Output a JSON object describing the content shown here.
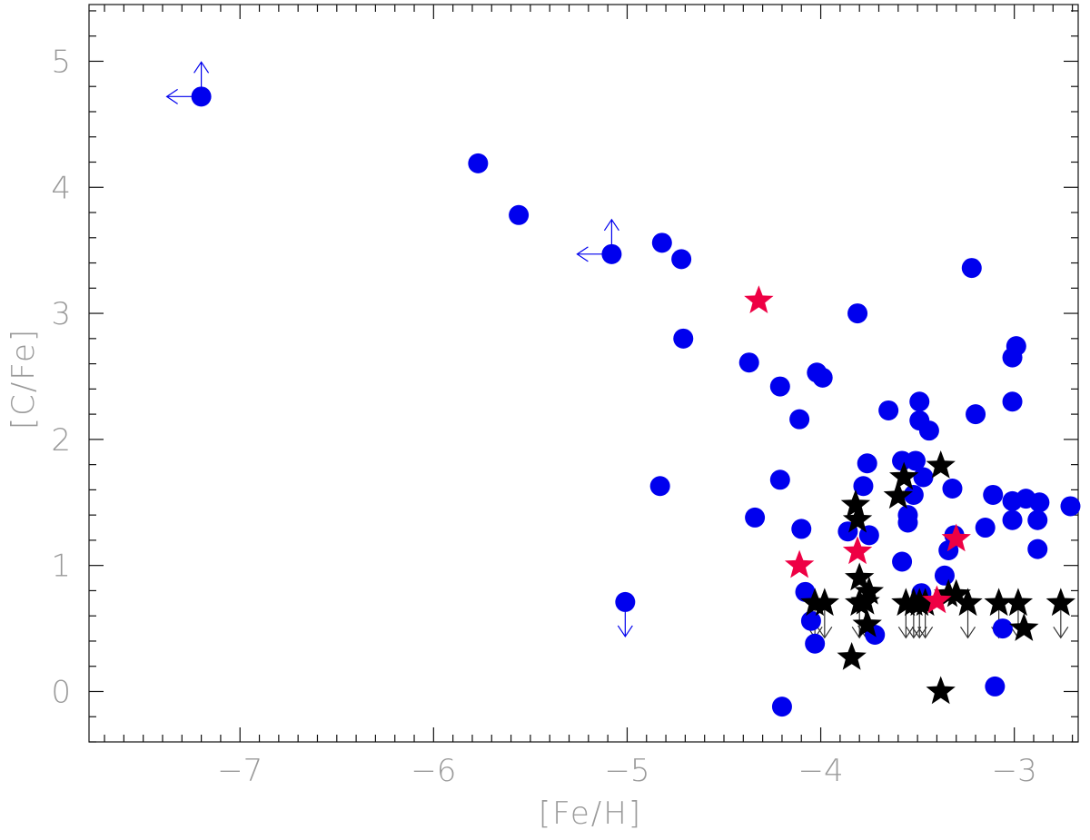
{
  "chart_data": {
    "type": "scatter",
    "xlabel": "[Fe/H]",
    "ylabel": "[C/Fe]",
    "xlim": [
      -7.78,
      -2.67
    ],
    "ylim": [
      -0.4,
      5.45
    ],
    "x_ticks": [
      -7,
      -6,
      -5,
      -4,
      -3
    ],
    "x_tick_labels": [
      "−7",
      "−6",
      "−5",
      "−4",
      "−3"
    ],
    "x_minor_step": 0.1,
    "y_ticks": [
      0,
      1,
      2,
      3,
      4,
      5
    ],
    "y_tick_labels": [
      "0",
      "1",
      "2",
      "3",
      "4",
      "5"
    ],
    "y_minor_step": 0.2,
    "grid": false,
    "legend": "none",
    "colors": {
      "blue": "#0000ee",
      "red": "#ee0044",
      "black": "#000000",
      "axis_text": "#9a9a9a"
    },
    "series": [
      {
        "marker": "circle",
        "color": "#0000ee",
        "points": [
          {
            "x": -7.2,
            "y": 4.72,
            "limits": [
              "left",
              "up"
            ]
          },
          {
            "x": -5.77,
            "y": 4.19
          },
          {
            "x": -5.56,
            "y": 3.78
          },
          {
            "x": -5.08,
            "y": 3.47,
            "limits": [
              "left",
              "up"
            ]
          },
          {
            "x": -4.82,
            "y": 3.56
          },
          {
            "x": -4.72,
            "y": 3.43
          },
          {
            "x": -4.71,
            "y": 2.8
          },
          {
            "x": -4.37,
            "y": 2.61
          },
          {
            "x": -4.21,
            "y": 2.42
          },
          {
            "x": -4.02,
            "y": 2.53
          },
          {
            "x": -3.99,
            "y": 2.49
          },
          {
            "x": -4.11,
            "y": 2.16
          },
          {
            "x": -3.81,
            "y": 3.0
          },
          {
            "x": -3.22,
            "y": 3.36
          },
          {
            "x": -4.83,
            "y": 1.63
          },
          {
            "x": -5.01,
            "y": 0.71,
            "limits": [
              "down"
            ]
          },
          {
            "x": -4.34,
            "y": 1.38
          },
          {
            "x": -4.21,
            "y": 1.68
          },
          {
            "x": -4.1,
            "y": 1.29
          },
          {
            "x": -4.08,
            "y": 0.79
          },
          {
            "x": -4.05,
            "y": 0.56
          },
          {
            "x": -4.03,
            "y": 0.38
          },
          {
            "x": -4.2,
            "y": -0.12
          },
          {
            "x": -3.86,
            "y": 1.27
          },
          {
            "x": -3.78,
            "y": 1.63
          },
          {
            "x": -3.76,
            "y": 1.81
          },
          {
            "x": -3.75,
            "y": 1.24
          },
          {
            "x": -3.72,
            "y": 0.45
          },
          {
            "x": -3.65,
            "y": 2.23
          },
          {
            "x": -3.58,
            "y": 1.83
          },
          {
            "x": -3.58,
            "y": 1.03
          },
          {
            "x": -3.55,
            "y": 1.4
          },
          {
            "x": -3.55,
            "y": 1.34
          },
          {
            "x": -3.52,
            "y": 1.56
          },
          {
            "x": -3.51,
            "y": 1.83
          },
          {
            "x": -3.49,
            "y": 2.3
          },
          {
            "x": -3.49,
            "y": 2.15
          },
          {
            "x": -3.47,
            "y": 1.7
          },
          {
            "x": -3.48,
            "y": 0.78
          },
          {
            "x": -3.44,
            "y": 2.07
          },
          {
            "x": -3.36,
            "y": 0.92
          },
          {
            "x": -3.34,
            "y": 1.12
          },
          {
            "x": -3.32,
            "y": 1.61
          },
          {
            "x": -3.31,
            "y": 1.24
          },
          {
            "x": -3.2,
            "y": 2.2
          },
          {
            "x": -3.15,
            "y": 1.3
          },
          {
            "x": -3.11,
            "y": 1.56
          },
          {
            "x": -3.1,
            "y": 0.04
          },
          {
            "x": -3.06,
            "y": 0.5
          },
          {
            "x": -3.01,
            "y": 2.3
          },
          {
            "x": -3.01,
            "y": 2.65
          },
          {
            "x": -2.99,
            "y": 2.74
          },
          {
            "x": -3.01,
            "y": 1.51
          },
          {
            "x": -3.01,
            "y": 1.36
          },
          {
            "x": -2.94,
            "y": 1.53
          },
          {
            "x": -2.87,
            "y": 1.5
          },
          {
            "x": -2.88,
            "y": 1.36
          },
          {
            "x": -2.88,
            "y": 1.13
          },
          {
            "x": -2.71,
            "y": 1.47
          }
        ]
      },
      {
        "marker": "star",
        "color": "#ee0044",
        "points": [
          {
            "x": -4.32,
            "y": 3.1
          },
          {
            "x": -4.11,
            "y": 1.0
          },
          {
            "x": -3.81,
            "y": 1.11
          },
          {
            "x": -3.4,
            "y": 0.72
          },
          {
            "x": -3.3,
            "y": 1.21
          }
        ]
      },
      {
        "marker": "star",
        "color": "#000000",
        "points": [
          {
            "x": -4.03,
            "y": 0.7,
            "limits": [
              "down"
            ]
          },
          {
            "x": -3.98,
            "y": 0.7,
            "limits": [
              "down"
            ]
          },
          {
            "x": -3.82,
            "y": 1.48
          },
          {
            "x": -3.81,
            "y": 1.36
          },
          {
            "x": -3.8,
            "y": 0.9
          },
          {
            "x": -3.8,
            "y": 0.7,
            "limits": [
              "down"
            ]
          },
          {
            "x": -3.77,
            "y": 0.71,
            "limits": [
              "down"
            ]
          },
          {
            "x": -3.75,
            "y": 0.79
          },
          {
            "x": -3.76,
            "y": 0.53
          },
          {
            "x": -3.84,
            "y": 0.27
          },
          {
            "x": -3.6,
            "y": 1.55
          },
          {
            "x": -3.57,
            "y": 1.7
          },
          {
            "x": -3.38,
            "y": 1.79
          },
          {
            "x": -3.56,
            "y": 0.7,
            "limits": [
              "down"
            ]
          },
          {
            "x": -3.52,
            "y": 0.7,
            "limits": [
              "down"
            ]
          },
          {
            "x": -3.49,
            "y": 0.7,
            "limits": [
              "down"
            ]
          },
          {
            "x": -3.46,
            "y": 0.7,
            "limits": [
              "down"
            ]
          },
          {
            "x": -3.38,
            "y": 0.0
          },
          {
            "x": -3.34,
            "y": 0.77
          },
          {
            "x": -3.3,
            "y": 0.77
          },
          {
            "x": -3.24,
            "y": 0.7,
            "limits": [
              "down"
            ]
          },
          {
            "x": -3.08,
            "y": 0.7,
            "limits": [
              "down"
            ]
          },
          {
            "x": -2.98,
            "y": 0.7,
            "limits": [
              "down"
            ]
          },
          {
            "x": -2.95,
            "y": 0.5
          },
          {
            "x": -2.76,
            "y": 0.7,
            "limits": [
              "down"
            ]
          }
        ]
      }
    ]
  }
}
